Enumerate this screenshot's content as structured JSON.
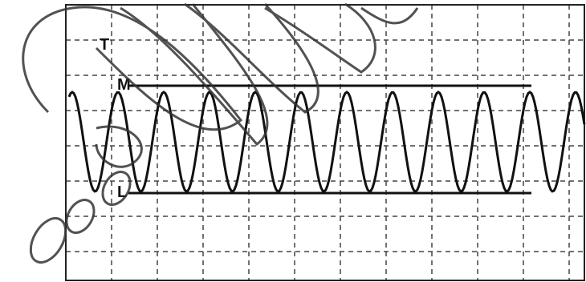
{
  "labels": {
    "t": "T",
    "m": "M",
    "l": "L"
  }
}
